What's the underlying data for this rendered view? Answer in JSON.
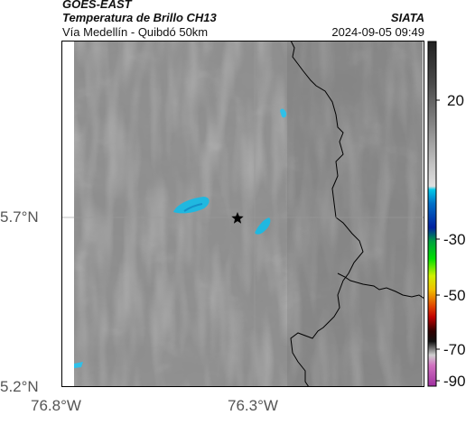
{
  "header": {
    "satellite": "GOES-EAST",
    "product": "Temperatura de Brillo CH13",
    "region": "Vía Medellín - Quibdó 50km",
    "agency": "SIATA",
    "datetime": "2024-09-05 09:49"
  },
  "axes": {
    "lat_labels": [
      "5.7°N",
      "5.2°N"
    ],
    "lon_labels": [
      "76.8°W",
      "76.3°W"
    ],
    "lat_values": [
      5.7,
      5.2
    ],
    "lon_values": [
      -76.8,
      -76.3
    ]
  },
  "colorbar": {
    "ticks": [
      "20",
      "-30",
      "-50",
      "-70",
      "-90"
    ],
    "tick_values": [
      20,
      -30,
      -50,
      -70,
      -90
    ],
    "range": [
      -95,
      40
    ],
    "colors": {
      "warm_top": "#202020",
      "warm_mid": "#cfcfcf",
      "cold_cyan": "#00c8e8",
      "cold_blue": "#0028a0",
      "green": "#00d000",
      "yellow": "#f0f000",
      "red": "#e00000",
      "black": "#000000",
      "magenta": "#c040c0"
    }
  },
  "map": {
    "marker_icon": "star-icon",
    "gridline_color": "#9a9a9a",
    "cloud_color": "#20b8e0",
    "border_color": "#000000"
  }
}
